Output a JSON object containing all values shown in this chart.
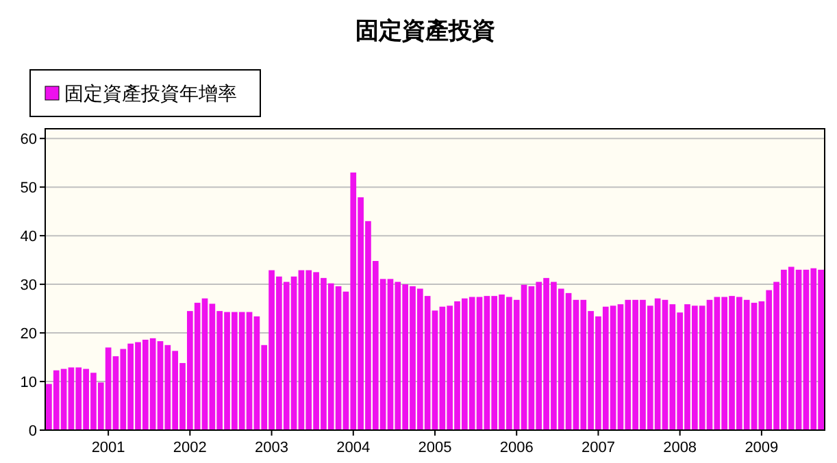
{
  "chart_data": {
    "type": "bar",
    "title": "固定資產投資",
    "categories": [
      null,
      null,
      null,
      null,
      null,
      null,
      null,
      null,
      "2001",
      null,
      null,
      null,
      null,
      null,
      null,
      null,
      null,
      null,
      null,
      "2002",
      null,
      null,
      null,
      null,
      null,
      null,
      null,
      null,
      null,
      null,
      "2003",
      null,
      null,
      null,
      null,
      null,
      null,
      null,
      null,
      null,
      null,
      "2004",
      null,
      null,
      null,
      null,
      null,
      null,
      null,
      null,
      null,
      null,
      "2005",
      null,
      null,
      null,
      null,
      null,
      null,
      null,
      null,
      null,
      null,
      "2006",
      null,
      null,
      null,
      null,
      null,
      null,
      null,
      null,
      null,
      null,
      "2007",
      null,
      null,
      null,
      null,
      null,
      null,
      null,
      null,
      null,
      null,
      "2008",
      null,
      null,
      null,
      null,
      null,
      null,
      null,
      null,
      null,
      null,
      "2009",
      null,
      null,
      null,
      null,
      null,
      null,
      null,
      null
    ],
    "series": [
      {
        "name": "固定資產投資年增率",
        "color": "#ee11ee",
        "values": [
          9.5,
          12.3,
          12.6,
          12.9,
          12.9,
          12.6,
          11.8,
          9.8,
          17,
          15.2,
          16.7,
          17.8,
          18.1,
          18.6,
          18.9,
          18.3,
          17.5,
          16.3,
          13.8,
          24.5,
          26.2,
          27.1,
          26,
          24.5,
          24.3,
          24.3,
          24.3,
          24.3,
          23.4,
          17.5,
          32.9,
          31.6,
          30.5,
          31.6,
          32.9,
          32.9,
          32.5,
          31.3,
          30.2,
          29.6,
          28.5,
          53,
          47.9,
          43,
          34.8,
          31.1,
          31.1,
          30.5,
          30,
          29.6,
          29.1,
          27.6,
          24.6,
          25.4,
          25.6,
          26.5,
          27.1,
          27.4,
          27.4,
          27.6,
          27.6,
          27.9,
          27.4,
          26.8,
          29.9,
          29.6,
          30.5,
          31.3,
          30.5,
          29.1,
          28.2,
          26.8,
          26.8,
          24.5,
          23.4,
          25.4,
          25.6,
          25.9,
          26.8,
          26.8,
          26.8,
          25.6,
          27.1,
          26.8,
          25.9,
          24.2,
          25.9,
          25.6,
          25.6,
          26.8,
          27.4,
          27.4,
          27.6,
          27.4,
          26.8,
          26.2,
          26.5,
          28.8,
          30.5,
          33,
          33.6,
          33,
          33,
          33.3,
          33
        ]
      }
    ],
    "ylim": [
      0,
      62
    ],
    "yticks": [
      0,
      10,
      20,
      30,
      40,
      50,
      60
    ],
    "grid": "y",
    "legend": "top left"
  }
}
